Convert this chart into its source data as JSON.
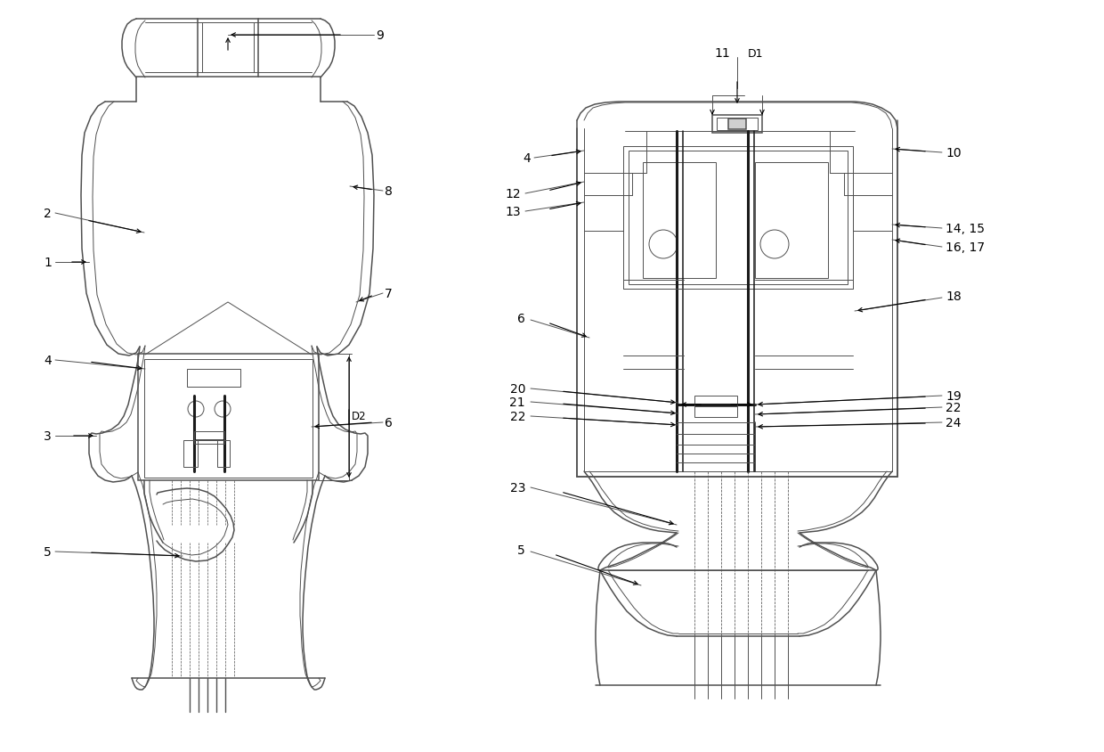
{
  "bg_color": "#ffffff",
  "lc": "#505050",
  "lc_dark": "#1a1a1a",
  "lw_thin": 0.7,
  "lw_med": 1.1,
  "lw_thick": 2.2,
  "figsize": [
    12.4,
    8.45
  ],
  "dpi": 100
}
